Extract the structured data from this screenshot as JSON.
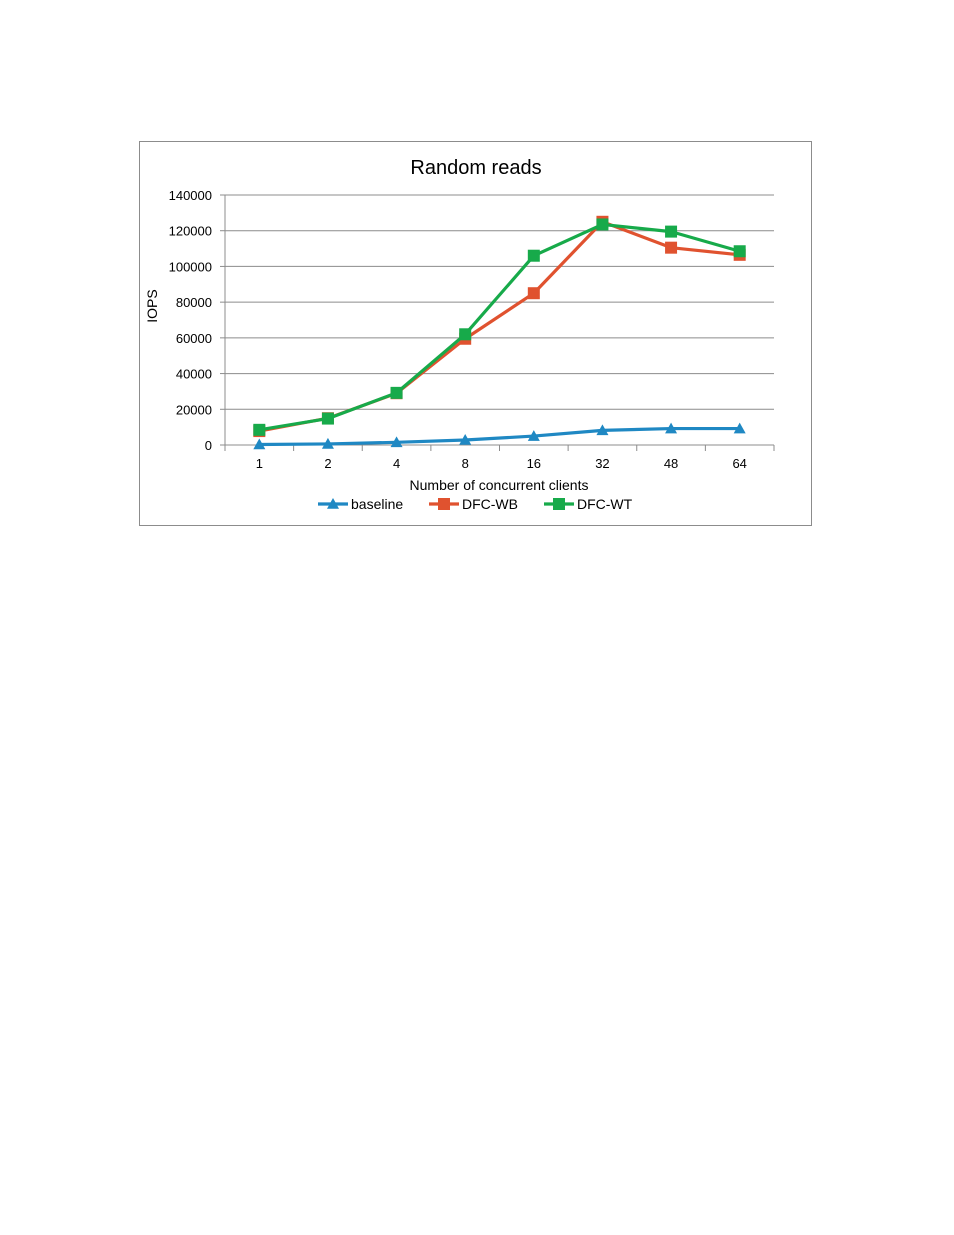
{
  "chart_data": {
    "type": "line",
    "title": "Random reads",
    "xlabel": "Number of concurrent clients",
    "ylabel": "IOPS",
    "categories": [
      "1",
      "2",
      "4",
      "8",
      "16",
      "32",
      "48",
      "64"
    ],
    "ylim": [
      0,
      140000
    ],
    "yticks": [
      0,
      20000,
      40000,
      60000,
      80000,
      100000,
      120000,
      140000
    ],
    "grid": true,
    "legend_position": "bottom",
    "series": [
      {
        "name": "baseline",
        "color": "#1f88c3",
        "marker": "triangle",
        "values": [
          300,
          600,
          1500,
          2800,
          5000,
          8200,
          9200,
          9200
        ]
      },
      {
        "name": "DFC-WB",
        "color": "#e0522f",
        "marker": "square",
        "values": [
          7800,
          15000,
          29000,
          59500,
          85000,
          125000,
          110500,
          106500
        ]
      },
      {
        "name": "DFC-WT",
        "color": "#17aa4a",
        "marker": "square",
        "values": [
          8500,
          14800,
          29200,
          62000,
          106000,
          123500,
          119500,
          108500
        ]
      }
    ]
  }
}
